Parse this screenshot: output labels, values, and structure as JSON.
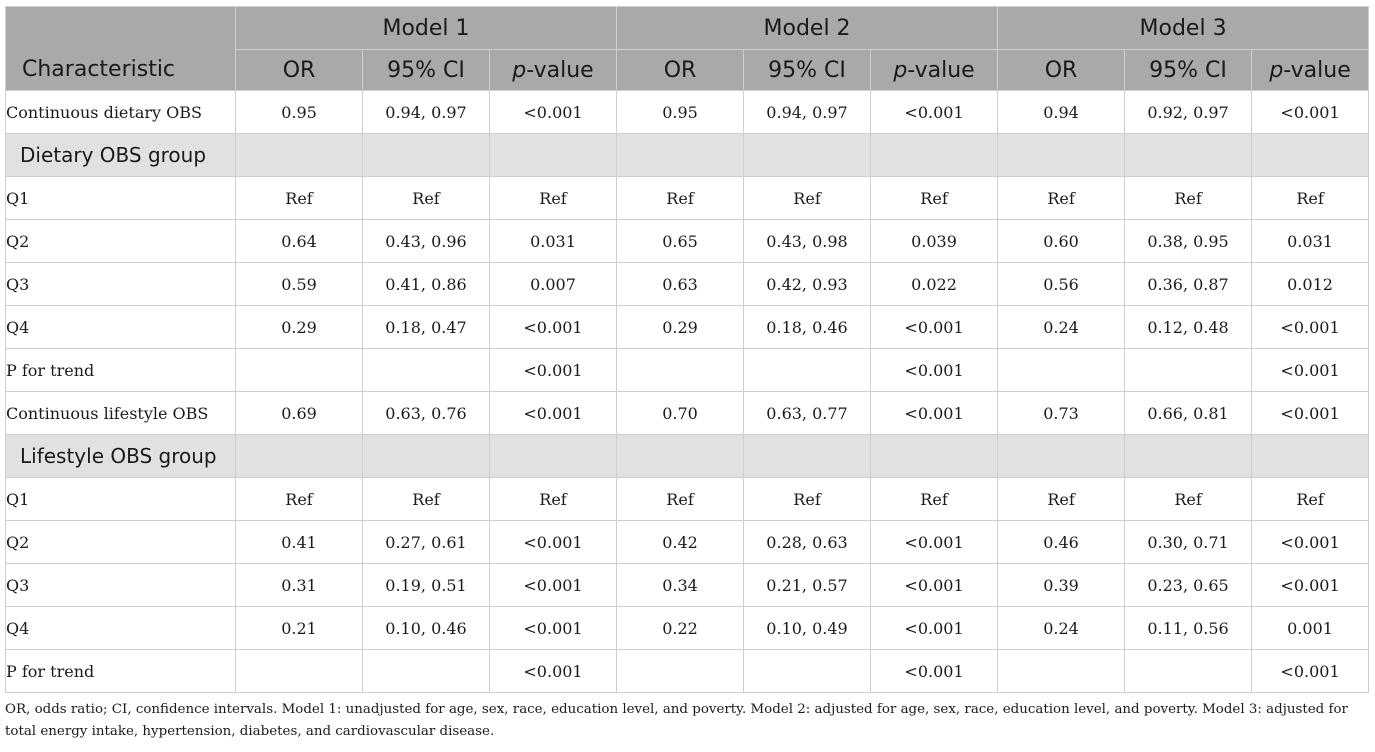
{
  "header": {
    "characteristic": "Characteristic",
    "models": [
      "Model 1",
      "Model 2",
      "Model 3"
    ],
    "sub": {
      "or": "OR",
      "ci": "95% CI",
      "p_italic": "p",
      "p_rest": "-value"
    }
  },
  "rows": [
    {
      "type": "data",
      "label": "Continuous dietary OBS",
      "cells": [
        "0.95",
        "0.94, 0.97",
        "<0.001",
        "0.95",
        "0.94, 0.97",
        "<0.001",
        "0.94",
        "0.92, 0.97",
        "<0.001"
      ]
    },
    {
      "type": "group",
      "label": "Dietary OBS group"
    },
    {
      "type": "data",
      "label": "Q1",
      "cells": [
        "Ref",
        "Ref",
        "Ref",
        "Ref",
        "Ref",
        "Ref",
        "Ref",
        "Ref",
        "Ref"
      ]
    },
    {
      "type": "data",
      "label": "Q2",
      "cells": [
        "0.64",
        "0.43, 0.96",
        "0.031",
        "0.65",
        "0.43, 0.98",
        "0.039",
        "0.60",
        "0.38, 0.95",
        "0.031"
      ]
    },
    {
      "type": "data",
      "label": "Q3",
      "cells": [
        "0.59",
        "0.41, 0.86",
        "0.007",
        "0.63",
        "0.42, 0.93",
        "0.022",
        "0.56",
        "0.36, 0.87",
        "0.012"
      ]
    },
    {
      "type": "data",
      "label": "Q4",
      "cells": [
        "0.29",
        "0.18, 0.47",
        "<0.001",
        "0.29",
        "0.18, 0.46",
        "<0.001",
        "0.24",
        "0.12, 0.48",
        "<0.001"
      ]
    },
    {
      "type": "data",
      "label": "P for trend",
      "cells": [
        "",
        "",
        "<0.001",
        "",
        "",
        "<0.001",
        "",
        "",
        "<0.001"
      ]
    },
    {
      "type": "data",
      "label": "Continuous lifestyle OBS",
      "cells": [
        "0.69",
        "0.63, 0.76",
        "<0.001",
        "0.70",
        "0.63, 0.77",
        "<0.001",
        "0.73",
        "0.66, 0.81",
        "<0.001"
      ]
    },
    {
      "type": "group",
      "label": "Lifestyle OBS group"
    },
    {
      "type": "data",
      "label": "Q1",
      "cells": [
        "Ref",
        "Ref",
        "Ref",
        "Ref",
        "Ref",
        "Ref",
        "Ref",
        "Ref",
        "Ref"
      ]
    },
    {
      "type": "data",
      "label": "Q2",
      "cells": [
        "0.41",
        "0.27, 0.61",
        "<0.001",
        "0.42",
        "0.28, 0.63",
        "<0.001",
        "0.46",
        "0.30, 0.71",
        "<0.001"
      ]
    },
    {
      "type": "data",
      "label": "Q3",
      "cells": [
        "0.31",
        "0.19, 0.51",
        "<0.001",
        "0.34",
        "0.21, 0.57",
        "<0.001",
        "0.39",
        "0.23, 0.65",
        "<0.001"
      ]
    },
    {
      "type": "data",
      "label": "Q4",
      "cells": [
        "0.21",
        "0.10, 0.46",
        "<0.001",
        "0.22",
        "0.10, 0.49",
        "<0.001",
        "0.24",
        "0.11, 0.56",
        "0.001"
      ]
    },
    {
      "type": "data",
      "label": "P for trend",
      "cells": [
        "",
        "",
        "<0.001",
        "",
        "",
        "<0.001",
        "",
        "",
        "<0.001"
      ]
    }
  ],
  "footnote": "OR, odds ratio; CI, confidence intervals. Model 1: unadjusted for age, sex, race, education level, and poverty. Model 2: adjusted for age, sex, race, education level, and poverty. Model 3: adjusted for total energy intake, hypertension, diabetes, and cardiovascular disease.",
  "colors": {
    "header_bg": "#a9a9a9",
    "group_bg": "#e1e1e1",
    "border": "#cfcfcf"
  }
}
